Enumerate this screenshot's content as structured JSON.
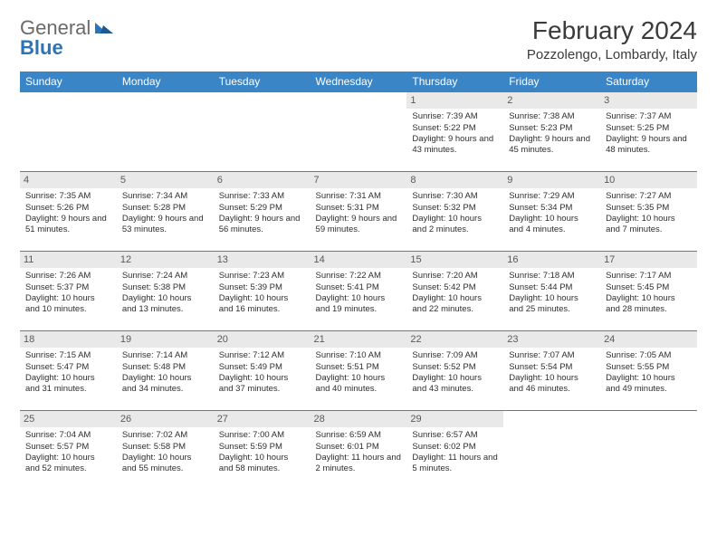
{
  "brand": {
    "part1": "General",
    "part2": "Blue"
  },
  "title": "February 2024",
  "location": "Pozzolengo, Lombardy, Italy",
  "colors": {
    "header_bg": "#3a85c6",
    "header_text": "#ffffff",
    "daynum_bg": "#e9e9e9",
    "daynum_text": "#5a5a5a",
    "row_border": "#3a85c6",
    "logo_gray": "#6a6a6a",
    "logo_blue": "#2b74b8",
    "body_text": "#2e2e2e",
    "page_bg": "#ffffff"
  },
  "day_headers": [
    "Sunday",
    "Monday",
    "Tuesday",
    "Wednesday",
    "Thursday",
    "Friday",
    "Saturday"
  ],
  "weeks": [
    [
      {
        "n": "",
        "sr": "",
        "ss": "",
        "dl": ""
      },
      {
        "n": "",
        "sr": "",
        "ss": "",
        "dl": ""
      },
      {
        "n": "",
        "sr": "",
        "ss": "",
        "dl": ""
      },
      {
        "n": "",
        "sr": "",
        "ss": "",
        "dl": ""
      },
      {
        "n": "1",
        "sr": "Sunrise: 7:39 AM",
        "ss": "Sunset: 5:22 PM",
        "dl": "Daylight: 9 hours and 43 minutes."
      },
      {
        "n": "2",
        "sr": "Sunrise: 7:38 AM",
        "ss": "Sunset: 5:23 PM",
        "dl": "Daylight: 9 hours and 45 minutes."
      },
      {
        "n": "3",
        "sr": "Sunrise: 7:37 AM",
        "ss": "Sunset: 5:25 PM",
        "dl": "Daylight: 9 hours and 48 minutes."
      }
    ],
    [
      {
        "n": "4",
        "sr": "Sunrise: 7:35 AM",
        "ss": "Sunset: 5:26 PM",
        "dl": "Daylight: 9 hours and 51 minutes."
      },
      {
        "n": "5",
        "sr": "Sunrise: 7:34 AM",
        "ss": "Sunset: 5:28 PM",
        "dl": "Daylight: 9 hours and 53 minutes."
      },
      {
        "n": "6",
        "sr": "Sunrise: 7:33 AM",
        "ss": "Sunset: 5:29 PM",
        "dl": "Daylight: 9 hours and 56 minutes."
      },
      {
        "n": "7",
        "sr": "Sunrise: 7:31 AM",
        "ss": "Sunset: 5:31 PM",
        "dl": "Daylight: 9 hours and 59 minutes."
      },
      {
        "n": "8",
        "sr": "Sunrise: 7:30 AM",
        "ss": "Sunset: 5:32 PM",
        "dl": "Daylight: 10 hours and 2 minutes."
      },
      {
        "n": "9",
        "sr": "Sunrise: 7:29 AM",
        "ss": "Sunset: 5:34 PM",
        "dl": "Daylight: 10 hours and 4 minutes."
      },
      {
        "n": "10",
        "sr": "Sunrise: 7:27 AM",
        "ss": "Sunset: 5:35 PM",
        "dl": "Daylight: 10 hours and 7 minutes."
      }
    ],
    [
      {
        "n": "11",
        "sr": "Sunrise: 7:26 AM",
        "ss": "Sunset: 5:37 PM",
        "dl": "Daylight: 10 hours and 10 minutes."
      },
      {
        "n": "12",
        "sr": "Sunrise: 7:24 AM",
        "ss": "Sunset: 5:38 PM",
        "dl": "Daylight: 10 hours and 13 minutes."
      },
      {
        "n": "13",
        "sr": "Sunrise: 7:23 AM",
        "ss": "Sunset: 5:39 PM",
        "dl": "Daylight: 10 hours and 16 minutes."
      },
      {
        "n": "14",
        "sr": "Sunrise: 7:22 AM",
        "ss": "Sunset: 5:41 PM",
        "dl": "Daylight: 10 hours and 19 minutes."
      },
      {
        "n": "15",
        "sr": "Sunrise: 7:20 AM",
        "ss": "Sunset: 5:42 PM",
        "dl": "Daylight: 10 hours and 22 minutes."
      },
      {
        "n": "16",
        "sr": "Sunrise: 7:18 AM",
        "ss": "Sunset: 5:44 PM",
        "dl": "Daylight: 10 hours and 25 minutes."
      },
      {
        "n": "17",
        "sr": "Sunrise: 7:17 AM",
        "ss": "Sunset: 5:45 PM",
        "dl": "Daylight: 10 hours and 28 minutes."
      }
    ],
    [
      {
        "n": "18",
        "sr": "Sunrise: 7:15 AM",
        "ss": "Sunset: 5:47 PM",
        "dl": "Daylight: 10 hours and 31 minutes."
      },
      {
        "n": "19",
        "sr": "Sunrise: 7:14 AM",
        "ss": "Sunset: 5:48 PM",
        "dl": "Daylight: 10 hours and 34 minutes."
      },
      {
        "n": "20",
        "sr": "Sunrise: 7:12 AM",
        "ss": "Sunset: 5:49 PM",
        "dl": "Daylight: 10 hours and 37 minutes."
      },
      {
        "n": "21",
        "sr": "Sunrise: 7:10 AM",
        "ss": "Sunset: 5:51 PM",
        "dl": "Daylight: 10 hours and 40 minutes."
      },
      {
        "n": "22",
        "sr": "Sunrise: 7:09 AM",
        "ss": "Sunset: 5:52 PM",
        "dl": "Daylight: 10 hours and 43 minutes."
      },
      {
        "n": "23",
        "sr": "Sunrise: 7:07 AM",
        "ss": "Sunset: 5:54 PM",
        "dl": "Daylight: 10 hours and 46 minutes."
      },
      {
        "n": "24",
        "sr": "Sunrise: 7:05 AM",
        "ss": "Sunset: 5:55 PM",
        "dl": "Daylight: 10 hours and 49 minutes."
      }
    ],
    [
      {
        "n": "25",
        "sr": "Sunrise: 7:04 AM",
        "ss": "Sunset: 5:57 PM",
        "dl": "Daylight: 10 hours and 52 minutes."
      },
      {
        "n": "26",
        "sr": "Sunrise: 7:02 AM",
        "ss": "Sunset: 5:58 PM",
        "dl": "Daylight: 10 hours and 55 minutes."
      },
      {
        "n": "27",
        "sr": "Sunrise: 7:00 AM",
        "ss": "Sunset: 5:59 PM",
        "dl": "Daylight: 10 hours and 58 minutes."
      },
      {
        "n": "28",
        "sr": "Sunrise: 6:59 AM",
        "ss": "Sunset: 6:01 PM",
        "dl": "Daylight: 11 hours and 2 minutes."
      },
      {
        "n": "29",
        "sr": "Sunrise: 6:57 AM",
        "ss": "Sunset: 6:02 PM",
        "dl": "Daylight: 11 hours and 5 minutes."
      },
      {
        "n": "",
        "sr": "",
        "ss": "",
        "dl": ""
      },
      {
        "n": "",
        "sr": "",
        "ss": "",
        "dl": ""
      }
    ]
  ]
}
